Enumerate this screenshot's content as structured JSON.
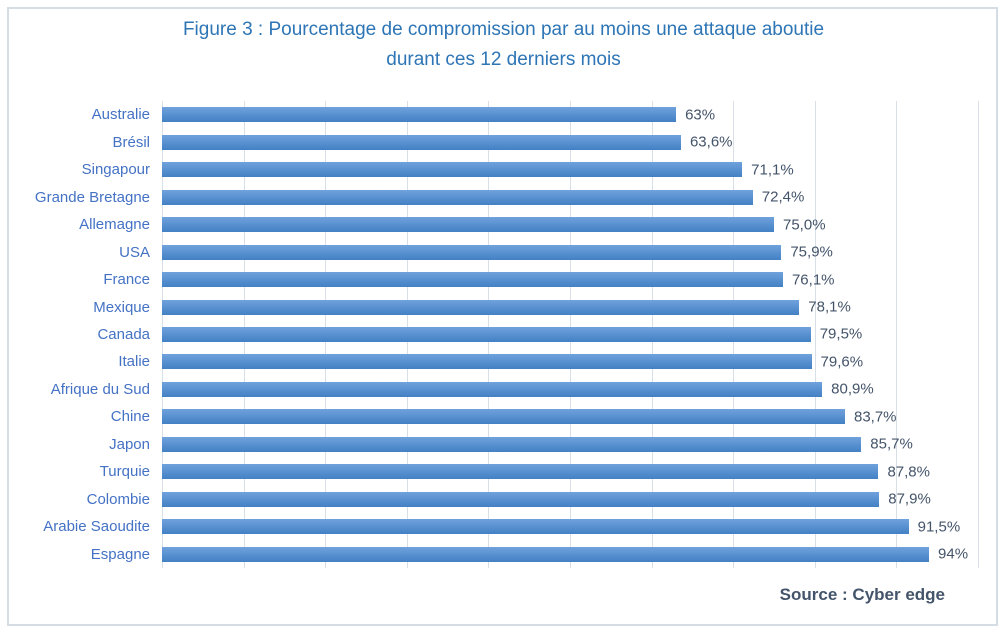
{
  "figure": {
    "title_line1": "Figure 3 : Pourcentage de compromission par au moins une attaque aboutie",
    "title_line2": "durant ces 12 derniers mois",
    "source": "Source : Cyber edge"
  },
  "colors": {
    "title-color": "#2e75b6",
    "label-color": "#4472c4",
    "value-color": "#44546a",
    "grid-color": "#d9dfe6",
    "border-color": "#d6dce4",
    "bar-top": "#6fa2dc",
    "bar-bottom": "#4280c4"
  },
  "chart_data": {
    "type": "bar",
    "orientation": "horizontal",
    "title": "Figure 3 : Pourcentage de compromission par au moins une attaque aboutie durant ces 12 derniers mois",
    "source": "Source : Cyber edge",
    "categories": [
      "Australie",
      "Brésil",
      "Singapour",
      "Grande Bretagne",
      "Allemagne",
      "USA",
      "France",
      "Mexique",
      "Canada",
      "Italie",
      "Afrique du Sud",
      "Chine",
      "Japon",
      "Turquie",
      "Colombie",
      "Arabie Saoudite",
      "Espagne"
    ],
    "values": [
      63,
      63.6,
      71.1,
      72.4,
      75.0,
      75.9,
      76.1,
      78.1,
      79.5,
      79.6,
      80.9,
      83.7,
      85.7,
      87.8,
      87.9,
      91.5,
      94
    ],
    "value_labels": [
      "63%",
      "63,6%",
      "71,1%",
      "72,4%",
      "75,0%",
      "75,9%",
      "76,1%",
      "78,1%",
      "79,5%",
      "79,6%",
      "80,9%",
      "83,7%",
      "85,7%",
      "87,8%",
      "87,9%",
      "91,5%",
      "94%"
    ],
    "xlim": [
      0,
      100
    ],
    "gridline_interval": 10,
    "grid": true,
    "legend": "none",
    "xlabel": "",
    "ylabel": ""
  }
}
